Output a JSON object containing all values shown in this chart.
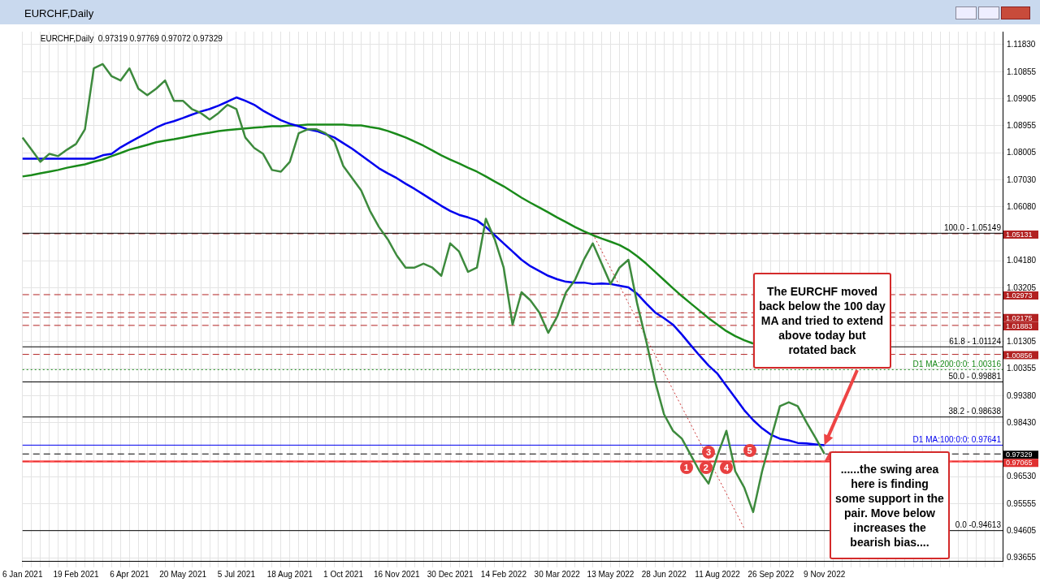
{
  "chart_data": {
    "type": "line",
    "title": "EURCHF,Daily",
    "subtitle": "EURCHF,Daily  0.97319 0.97769 0.97072 0.97329",
    "categories": [
      "6 Jan 2021",
      null,
      null,
      null,
      null,
      null,
      "19 Feb 2021",
      null,
      null,
      null,
      null,
      null,
      "6 Apr 2021",
      null,
      null,
      null,
      null,
      null,
      "20 May 2021",
      null,
      null,
      null,
      null,
      null,
      "5 Jul 2021",
      null,
      null,
      null,
      null,
      null,
      "18 Aug 2021",
      null,
      null,
      null,
      null,
      null,
      "1 Oct 2021",
      null,
      null,
      null,
      null,
      null,
      "16 Nov 2021",
      null,
      null,
      null,
      null,
      null,
      "30 Dec 2021",
      null,
      null,
      null,
      null,
      null,
      "14 Feb 2022",
      null,
      null,
      null,
      null,
      null,
      "30 Mar 2022",
      null,
      null,
      null,
      null,
      null,
      "13 May 2022",
      null,
      null,
      null,
      null,
      null,
      "28 Jun 2022",
      null,
      null,
      null,
      null,
      null,
      "11 Aug 2022",
      null,
      null,
      null,
      null,
      null,
      "26 Sep 2022",
      null,
      null,
      null,
      null,
      null,
      "9 Nov 2022",
      null,
      null,
      null,
      null,
      null,
      null,
      null,
      null,
      null,
      null,
      null,
      null,
      null,
      null,
      null,
      null,
      null,
      null,
      null,
      null
    ],
    "series": [
      {
        "type": "line",
        "color": "#3d8a3d",
        "line_style": "solid",
        "values": [
          1.0854,
          1.0811,
          1.0768,
          1.0796,
          1.0788,
          1.0811,
          1.0831,
          1.0883,
          1.1099,
          1.1114,
          1.1071,
          1.1056,
          1.1099,
          1.1027,
          1.1004,
          1.1027,
          1.1056,
          1.0984,
          1.0984,
          1.0955,
          1.0941,
          1.0918,
          1.0941,
          1.097,
          1.0955,
          1.0854,
          1.0817,
          1.0796,
          1.0739,
          1.0733,
          1.0768,
          1.0869,
          1.0883,
          1.0883,
          1.0869,
          1.084,
          1.0753,
          1.071,
          1.0667,
          1.0594,
          1.0537,
          1.0493,
          1.0436,
          1.0393,
          1.0393,
          1.0407,
          1.0393,
          1.0364,
          1.0479,
          1.045,
          1.0378,
          1.0393,
          1.0566,
          1.0493,
          1.0393,
          1.0191,
          1.0306,
          1.0277,
          1.0234,
          1.0162,
          1.0219,
          1.0306,
          1.0349,
          1.0421,
          1.0479,
          1.0407,
          1.0335,
          1.0393,
          1.0421,
          1.0263,
          1.0133,
          0.9989,
          0.9873,
          0.9815,
          0.9787,
          0.9729,
          0.9671,
          0.9628,
          0.9729,
          0.9815,
          0.9671,
          0.9614,
          0.9527,
          0.9671,
          0.9787,
          0.9902,
          0.9916,
          0.9902,
          0.9844,
          0.979,
          0.9733,
          null,
          null,
          null,
          null,
          null,
          null,
          null,
          null,
          null,
          null,
          null,
          null,
          null,
          null,
          null,
          null,
          null,
          null,
          null,
          null
        ]
      },
      {
        "type": "line",
        "color": "#0000ee",
        "line_style": "solid",
        "values": [
          1.0779,
          1.0779,
          1.0779,
          1.0779,
          1.0779,
          1.0779,
          1.0779,
          1.0779,
          1.0779,
          1.0791,
          1.0796,
          1.0819,
          1.0837,
          1.0854,
          1.0871,
          1.0889,
          1.0903,
          1.0912,
          1.0923,
          1.0935,
          1.0946,
          1.0955,
          1.0967,
          1.0981,
          1.0996,
          1.0984,
          1.097,
          1.0949,
          1.0932,
          1.0915,
          1.0903,
          1.0894,
          1.0883,
          1.0877,
          1.0866,
          1.0854,
          1.0834,
          1.0814,
          1.0791,
          1.0768,
          1.0745,
          1.0727,
          1.071,
          1.069,
          1.0672,
          1.0652,
          1.0632,
          1.0612,
          1.0594,
          1.058,
          1.0571,
          1.056,
          1.0537,
          1.0508,
          1.0479,
          1.045,
          1.0421,
          1.0398,
          1.0381,
          1.0364,
          1.0352,
          1.0343,
          1.034,
          1.034,
          1.0335,
          1.0337,
          1.0335,
          1.0329,
          1.0323,
          1.03,
          1.0266,
          1.0234,
          1.0214,
          1.0191,
          1.0156,
          1.0118,
          1.0081,
          1.0046,
          1.0017,
          0.9974,
          0.9931,
          0.9888,
          0.9853,
          0.9824,
          0.9801,
          0.9787,
          0.9781,
          0.9772,
          0.977,
          0.9767,
          0.9764,
          null,
          null,
          null,
          null,
          null,
          null,
          null,
          null,
          null,
          null,
          null,
          null,
          null,
          null,
          null,
          null,
          null,
          null,
          null,
          null
        ]
      },
      {
        "type": "line",
        "color": "#1a8a1a",
        "line_style": "solid",
        "values": [
          1.0716,
          1.0721,
          1.0727,
          1.0733,
          1.0739,
          1.0747,
          1.0753,
          1.0759,
          1.0768,
          1.0776,
          1.0788,
          1.0799,
          1.0811,
          1.0819,
          1.0828,
          1.0837,
          1.0843,
          1.0848,
          1.0854,
          1.086,
          1.0866,
          1.0871,
          1.0877,
          1.088,
          1.0883,
          1.0886,
          1.0889,
          1.0891,
          1.0894,
          1.0894,
          1.0897,
          1.0897,
          1.09,
          1.09,
          1.09,
          1.09,
          1.09,
          1.0897,
          1.0897,
          1.0891,
          1.0886,
          1.0877,
          1.0866,
          1.0854,
          1.084,
          1.0825,
          1.0808,
          1.0791,
          1.0776,
          1.0762,
          1.0747,
          1.0733,
          1.0716,
          1.0698,
          1.0681,
          1.0661,
          1.0641,
          1.0623,
          1.0606,
          1.0589,
          1.0571,
          1.0554,
          1.0537,
          1.0522,
          1.0508,
          1.0496,
          1.0485,
          1.0473,
          1.0456,
          1.0433,
          1.0407,
          1.0378,
          1.0349,
          1.032,
          1.0292,
          1.0266,
          1.024,
          1.0214,
          1.0191,
          1.0168,
          1.015,
          1.0136,
          1.0124,
          null,
          null,
          null,
          null,
          null,
          null,
          null,
          null,
          null,
          null,
          null,
          null,
          null,
          null,
          null,
          null,
          null,
          null,
          null,
          null,
          null,
          null,
          null,
          null,
          null,
          null,
          null,
          null
        ]
      },
      {
        "type": "line",
        "color": "#cc3333",
        "line_style": "dotted",
        "values": [
          null,
          null,
          null,
          null,
          null,
          null,
          null,
          null,
          null,
          null,
          null,
          null,
          null,
          null,
          null,
          null,
          null,
          null,
          null,
          null,
          null,
          null,
          null,
          null,
          null,
          null,
          null,
          null,
          null,
          null,
          null,
          null,
          null,
          null,
          null,
          null,
          null,
          null,
          null,
          null,
          null,
          null,
          null,
          null,
          null,
          null,
          null,
          null,
          null,
          null,
          null,
          null,
          null,
          null,
          null,
          null,
          null,
          null,
          null,
          null,
          null,
          null,
          null,
          null,
          1.0513,
          1.0452,
          1.039,
          1.0329,
          1.0267,
          1.0206,
          1.0145,
          1.0083,
          1.0022,
          0.996,
          0.9899,
          0.9838,
          0.9776,
          0.9715,
          0.9653,
          0.9592,
          0.953,
          0.9469,
          null,
          null,
          null,
          null,
          null,
          null,
          null,
          null,
          null,
          null,
          null,
          null,
          null,
          null,
          null,
          null,
          null,
          null,
          null,
          null,
          null,
          null,
          null,
          null,
          null,
          null,
          null,
          null,
          null
        ]
      }
    ],
    "ylim": [
      0.9354,
      1.1229
    ],
    "yticks": [
      {
        "value": 1.1183,
        "label": "1.11830"
      },
      {
        "value": 1.10855,
        "label": "1.10855"
      },
      {
        "value": 1.09905,
        "label": "1.09905"
      },
      {
        "value": 1.08955,
        "label": "1.08955"
      },
      {
        "value": 1.08005,
        "label": "1.08005"
      },
      {
        "value": 1.0703,
        "label": "1.07030"
      },
      {
        "value": 1.0608,
        "label": "1.06080"
      },
      {
        "value": 1.0418,
        "label": "1.04180"
      },
      {
        "value": 1.03205,
        "label": "1.03205"
      },
      {
        "value": 1.01305,
        "label": "1.01305"
      },
      {
        "value": 1.00355,
        "label": "1.00355"
      },
      {
        "value": 0.9938,
        "label": "0.99380"
      },
      {
        "value": 0.9843,
        "label": "0.98430"
      },
      {
        "value": 0.9653,
        "label": "0.96530"
      },
      {
        "value": 0.95555,
        "label": "0.95555"
      },
      {
        "value": 0.94605,
        "label": "0.94605"
      },
      {
        "value": 0.93655,
        "label": "0.93655"
      }
    ],
    "grid": true,
    "legend": false,
    "marker": "none",
    "ref_lines": [
      {
        "axis": "y",
        "value": 1.05131,
        "label": "1.05131",
        "color": "#b22222",
        "line_style": "dashed"
      },
      {
        "axis": "y",
        "value": 1.02973,
        "label": "1.02973",
        "color": "#b22222",
        "line_style": "dashed"
      },
      {
        "axis": "y",
        "value": 1.0233,
        "color": "#b22222",
        "line_style": "dashed"
      },
      {
        "axis": "y",
        "value": 1.02175,
        "label": "1.02175",
        "color": "#b22222",
        "line_style": "dashed"
      },
      {
        "axis": "y",
        "value": 1.01883,
        "label": "1.01883",
        "color": "#b22222",
        "line_style": "dashed"
      },
      {
        "axis": "y",
        "value": 1.00856,
        "label": "1.00856",
        "color": "#b22222",
        "line_style": "dashed"
      },
      {
        "axis": "y",
        "value": 0.97329,
        "label": "0.97329",
        "color": "#000000",
        "line_style": "dashed"
      },
      {
        "axis": "y",
        "value": 0.97065,
        "label": "0.97065",
        "color": "#e03030",
        "line_style": "dashed"
      },
      {
        "axis": "y",
        "value": 1.05149,
        "color": "#000000",
        "line_style": "solid"
      },
      {
        "axis": "y",
        "value": 1.01124,
        "color": "#000000",
        "line_style": "solid"
      },
      {
        "axis": "y",
        "value": 0.99881,
        "color": "#000000",
        "line_style": "solid"
      },
      {
        "axis": "y",
        "value": 0.98638,
        "color": "#000000",
        "line_style": "solid"
      },
      {
        "axis": "y",
        "value": 0.94613,
        "color": "#000000",
        "line_style": "solid"
      },
      {
        "axis": "y",
        "value": 1.00316,
        "label": "D1 MA:200:0:0: 1.00316",
        "color": "#1a8a1a",
        "line_style": "dotted"
      },
      {
        "axis": "y",
        "value": 0.97641,
        "label": "D1 MA:100:0:0: 0.97641",
        "color": "#0000ee",
        "line_style": "solid"
      }
    ],
    "bands": [
      {
        "axis": "y",
        "from": 0.9703,
        "to": 0.971,
        "color": "#ff5050"
      }
    ],
    "annotations": [
      {
        "text": "The EURCHF moved back below the 100 day MA and tried to extend above today but rotated back",
        "x": "9 Nov 2022",
        "y": 0.9764
      },
      {
        "text": "......the swing area here is finding some support in the pair.  Move below increases the bearish bias....",
        "x": "9 Nov 2022",
        "y": 0.9707
      },
      {
        "text": "1",
        "y": 0.9686
      },
      {
        "text": "2",
        "y": 0.9686
      },
      {
        "text": "3",
        "y": 0.974
      },
      {
        "text": "4",
        "y": 0.9686
      },
      {
        "text": "5",
        "y": 0.9746
      },
      {
        "text": "100.0 - 1.05149",
        "y": 1.05149
      },
      {
        "text": "61.8 - 1.01124",
        "y": 1.01124
      },
      {
        "text": "50.0 - 0.99881",
        "y": 0.99881
      },
      {
        "text": "38.2 - 0.98638",
        "y": 0.98638
      },
      {
        "text": "0.0 -0.94613",
        "y": 0.94613
      }
    ]
  }
}
